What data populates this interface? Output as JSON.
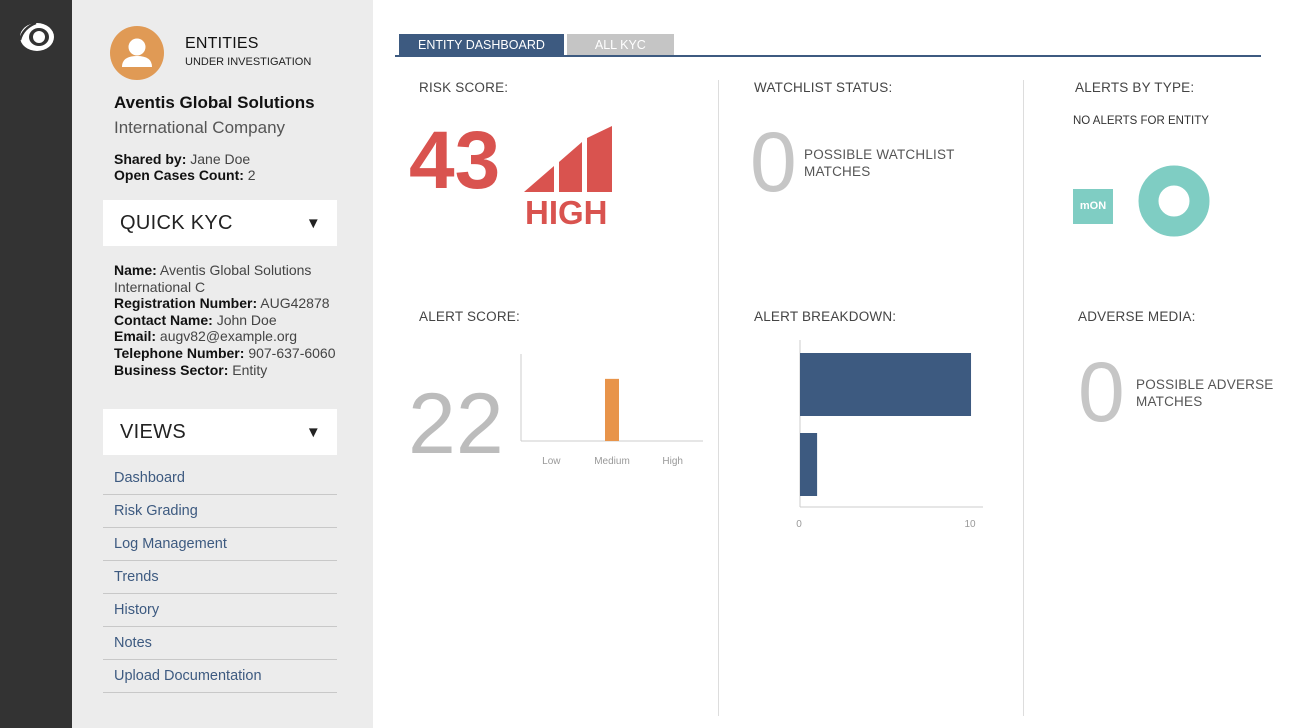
{
  "sidebar": {
    "entities_title": "ENTITIES",
    "entities_subtitle": "UNDER INVESTIGATION",
    "company_name": "Aventis Global Solutions",
    "company_type": "International Company",
    "shared_by_label": "Shared by:",
    "shared_by_value": "Jane Doe",
    "open_cases_label": "Open Cases Count:",
    "open_cases_value": "2",
    "quick_kyc_label": "QUICK KYC",
    "kyc": {
      "name_label": "Name:",
      "name_value": "Aventis Global Solutions International C",
      "reg_label": "Registration Number:",
      "reg_value": "AUG42878",
      "contact_label": "Contact Name:",
      "contact_value": "John Doe",
      "email_label": "Email:",
      "email_value": "augv82@example.org",
      "phone_label": "Telephone Number:",
      "phone_value": "907-637-6060",
      "sector_label": "Business Sector:",
      "sector_value": "Entity"
    },
    "views_label": "VIEWS",
    "views": [
      "Dashboard",
      "Risk Grading",
      "Log Management",
      "Trends",
      "History",
      "Notes",
      "Upload Documentation"
    ]
  },
  "tabs": [
    "ENTITY DASHBOARD",
    "ALL KYC"
  ],
  "risk": {
    "label": "RISK SCORE:",
    "value": "43",
    "level": "HIGH",
    "color": "#d9534f"
  },
  "watchlist": {
    "label": "WATCHLIST STATUS:",
    "value": "0",
    "description": "POSSIBLE WATCHLIST MATCHES"
  },
  "alerts_by_type": {
    "label": "ALERTS BY TYPE:",
    "note": "NO ALERTS FOR ENTITY",
    "legend": "mON",
    "color": "#7fcdc3"
  },
  "alert_score": {
    "label": "ALERT SCORE:",
    "value": "22"
  },
  "alert_breakdown": {
    "label": "ALERT BREAKDOWN:"
  },
  "adverse_media": {
    "label": "ADVERSE MEDIA:",
    "value": "0",
    "description": "POSSIBLE ADVERSE MATCHES"
  },
  "chart_data": [
    {
      "type": "bar",
      "categories": [
        "Low",
        "Medium",
        "High"
      ],
      "values": [
        0,
        1,
        0
      ],
      "color": "#e8944a",
      "ylim": [
        0,
        1.4
      ]
    },
    {
      "type": "bar",
      "orientation": "horizontal",
      "categories": [
        "",
        ""
      ],
      "values": [
        10,
        1
      ],
      "color": "#3d5a80",
      "xticks": [
        "0",
        "10"
      ],
      "xlim": [
        0,
        10.7
      ]
    }
  ]
}
